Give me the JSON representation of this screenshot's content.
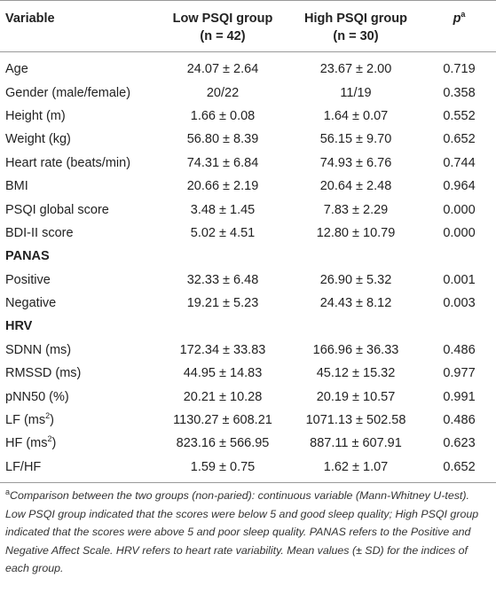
{
  "header": {
    "variable": "Variable",
    "low": [
      "Low PSQI group",
      "(n = 42)"
    ],
    "high": [
      "High PSQI group",
      "(n = 30)"
    ],
    "p": "p",
    "p_sup": "a"
  },
  "rows": [
    {
      "label": "Age",
      "low": "24.07 ± 2.64",
      "high": "23.67 ± 2.00",
      "p": "0.719"
    },
    {
      "label": "Gender (male/female)",
      "low": "20/22",
      "high": "11/19",
      "p": "0.358"
    },
    {
      "label": "Height (m)",
      "low": "1.66 ± 0.08",
      "high": "1.64 ± 0.07",
      "p": "0.552"
    },
    {
      "label": "Weight (kg)",
      "low": "56.80 ± 8.39",
      "high": "56.15 ± 9.70",
      "p": "0.652"
    },
    {
      "label": "Heart rate (beats/min)",
      "low": "74.31 ± 6.84",
      "high": "74.93 ± 6.76",
      "p": "0.744"
    },
    {
      "label": "BMI",
      "low": "20.66 ± 2.19",
      "high": "20.64 ± 2.48",
      "p": "0.964"
    },
    {
      "label": "PSQI global score",
      "low": "3.48 ± 1.45",
      "high": "7.83 ± 2.29",
      "p": "0.000"
    },
    {
      "label": "BDI-II score",
      "low": "5.02 ± 4.51",
      "high": "12.80 ± 10.79",
      "p": "0.000"
    },
    {
      "section": "PANAS"
    },
    {
      "label": "Positive",
      "low": "32.33 ± 6.48",
      "high": "26.90 ± 5.32",
      "p": "0.001"
    },
    {
      "label": "Negative",
      "low": "19.21 ± 5.23",
      "high": "24.43 ± 8.12",
      "p": "0.003"
    },
    {
      "section": "HRV"
    },
    {
      "label": "SDNN (ms)",
      "low": "172.34 ± 33.83",
      "high": "166.96 ± 36.33",
      "p": "0.486"
    },
    {
      "label": "RMSSD (ms)",
      "low": "44.95 ± 14.83",
      "high": "45.12 ± 15.32",
      "p": "0.977"
    },
    {
      "label": "pNN50 (%)",
      "low": "20.21 ± 10.28",
      "high": "20.19 ± 10.57",
      "p": "0.991"
    },
    {
      "label": "LF (ms",
      "label_sup": "2",
      "label_tail": ")",
      "low": "1130.27 ± 608.21",
      "high": "1071.13 ± 502.58",
      "p": "0.486"
    },
    {
      "label": "HF (ms",
      "label_sup": "2",
      "label_tail": ")",
      "low": "823.16 ± 566.95",
      "high": "887.11 ± 607.91",
      "p": "0.623"
    },
    {
      "label": "LF/HF",
      "low": "1.59 ± 0.75",
      "high": "1.62 ± 1.07",
      "p": "0.652"
    }
  ],
  "footnote": {
    "mark": "a",
    "text": "Comparison between the two groups (non-paried): continuous variable (Mann-Whitney U-test). Low PSQI group indicated that the scores were below 5 and good sleep quality; High PSQI group indicated that the scores were above 5 and poor sleep quality. PANAS refers to the Positive and Negative Affect Scale. HRV refers to heart rate variability. Mean values (± SD) for the indices of each group."
  }
}
